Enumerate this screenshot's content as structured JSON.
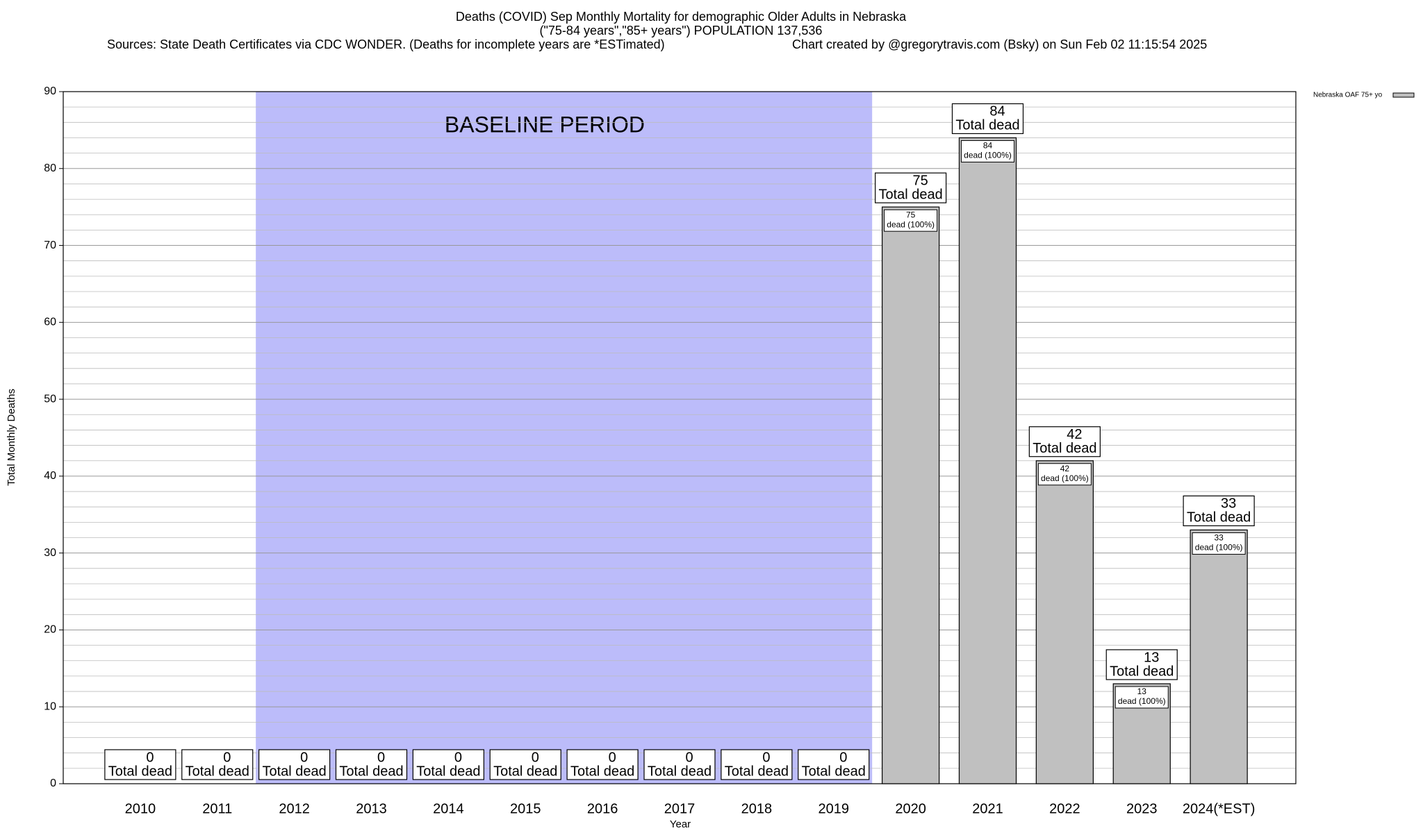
{
  "chart_data": {
    "type": "bar",
    "title": "Deaths (COVID) Sep Monthly Mortality for demographic Older Adults in Nebraska",
    "subtitle": "(\"75-84 years\",\"85+ years\") POPULATION 137,536",
    "sources": "Sources: State Death Certificates via CDC WONDER. (Deaths for incomplete years are *ESTimated)",
    "credit": "Chart created by @gregorytravis.com (Bsky) on Sun Feb 02 11:15:54 2025",
    "ylabel": "Total Monthly Deaths",
    "xlabel": "Year",
    "categories": [
      "2010",
      "2011",
      "2012",
      "2013",
      "2014",
      "2015",
      "2016",
      "2017",
      "2018",
      "2019",
      "2020",
      "2021",
      "2022",
      "2023",
      "2024(*EST)"
    ],
    "series": [
      {
        "name": "Nebraska OAF 75+ yo",
        "color": "#c0c0c0",
        "values": [
          0,
          0,
          0,
          0,
          0,
          0,
          0,
          0,
          0,
          0,
          75,
          84,
          42,
          13,
          33
        ]
      }
    ],
    "total_label": "Total dead",
    "share_label": "dead (100%)",
    "baseline": {
      "label": "BASELINE PERIOD",
      "start": "2012",
      "end": "2019",
      "color": "#bcbcfa"
    },
    "ylim": [
      0,
      90
    ],
    "yticks": [
      0,
      10,
      20,
      30,
      40,
      50,
      60,
      70,
      80,
      90
    ],
    "grid": {
      "major": true,
      "minor_per_major": 5
    },
    "legend": "top-right"
  }
}
